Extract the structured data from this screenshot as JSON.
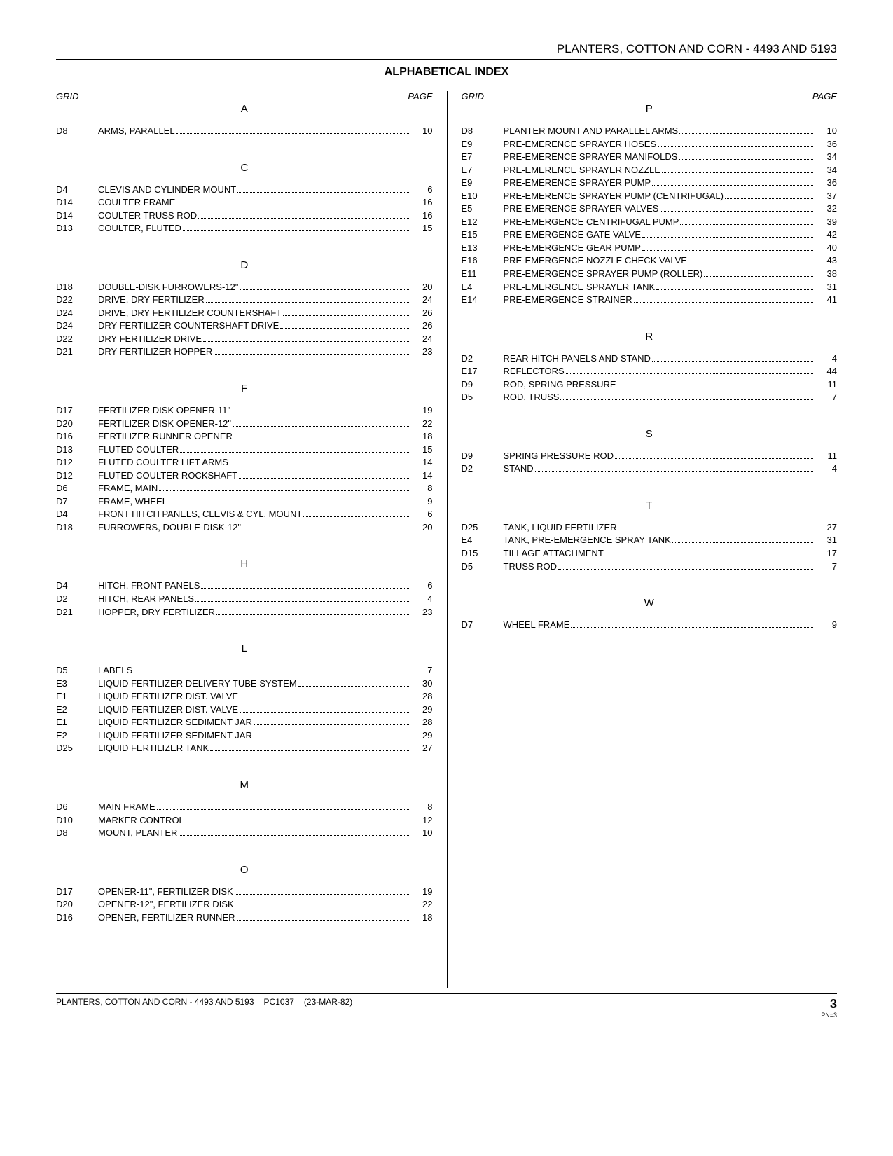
{
  "header": {
    "title": "PLANTERS, COTTON AND CORN - 4493 AND 5193",
    "index_title": "ALPHABETICAL INDEX"
  },
  "column_headers": {
    "grid": "GRID",
    "page": "PAGE"
  },
  "left_sections": [
    {
      "letter": "A",
      "entries": [
        {
          "grid": "D8",
          "desc": "ARMS, PARALLEL",
          "page": "10"
        }
      ]
    },
    {
      "letter": "C",
      "entries": [
        {
          "grid": "D4",
          "desc": "CLEVIS AND CYLINDER MOUNT",
          "page": "6"
        },
        {
          "grid": "D14",
          "desc": "COULTER FRAME",
          "page": "16"
        },
        {
          "grid": "D14",
          "desc": "COULTER TRUSS ROD",
          "page": "16"
        },
        {
          "grid": "D13",
          "desc": "COULTER, FLUTED",
          "page": "15"
        }
      ]
    },
    {
      "letter": "D",
      "entries": [
        {
          "grid": "D18",
          "desc": "DOUBLE-DISK FURROWERS-12\"",
          "page": "20"
        },
        {
          "grid": "D22",
          "desc": "DRIVE, DRY FERTILIZER",
          "page": "24"
        },
        {
          "grid": "D24",
          "desc": "DRIVE, DRY FERTILIZER COUNTERSHAFT",
          "page": "26"
        },
        {
          "grid": "D24",
          "desc": "DRY FERTILIZER COUNTERSHAFT DRIVE",
          "page": "26"
        },
        {
          "grid": "D22",
          "desc": "DRY FERTILIZER DRIVE",
          "page": "24"
        },
        {
          "grid": "D21",
          "desc": "DRY FERTILIZER HOPPER",
          "page": "23"
        }
      ]
    },
    {
      "letter": "F",
      "entries": [
        {
          "grid": "D17",
          "desc": "FERTILIZER DISK OPENER-11\"",
          "page": "19"
        },
        {
          "grid": "D20",
          "desc": "FERTILIZER DISK OPENER-12\"",
          "page": "22"
        },
        {
          "grid": "D16",
          "desc": "FERTILIZER RUNNER OPENER",
          "page": "18"
        },
        {
          "grid": "D13",
          "desc": "FLUTED COULTER",
          "page": "15"
        },
        {
          "grid": "D12",
          "desc": "FLUTED COULTER LIFT ARMS",
          "page": "14"
        },
        {
          "grid": "D12",
          "desc": "FLUTED COULTER ROCKSHAFT",
          "page": "14"
        },
        {
          "grid": "D6",
          "desc": "FRAME, MAIN",
          "page": "8"
        },
        {
          "grid": "D7",
          "desc": "FRAME, WHEEL",
          "page": "9"
        },
        {
          "grid": "D4",
          "desc": "FRONT HITCH PANELS, CLEVIS & CYL. MOUNT",
          "page": "6"
        },
        {
          "grid": "D18",
          "desc": "FURROWERS, DOUBLE-DISK-12\"",
          "page": "20"
        }
      ]
    },
    {
      "letter": "H",
      "entries": [
        {
          "grid": "D4",
          "desc": "HITCH, FRONT PANELS",
          "page": "6"
        },
        {
          "grid": "D2",
          "desc": "HITCH, REAR PANELS",
          "page": "4"
        },
        {
          "grid": "D21",
          "desc": "HOPPER, DRY FERTILIZER",
          "page": "23"
        }
      ]
    },
    {
      "letter": "L",
      "entries": [
        {
          "grid": "D5",
          "desc": "LABELS",
          "page": "7"
        },
        {
          "grid": "E3",
          "desc": "LIQUID FERTILIZER DELIVERY TUBE SYSTEM",
          "page": "30"
        },
        {
          "grid": "E1",
          "desc": "LIQUID FERTILIZER DIST. VALVE",
          "page": "28"
        },
        {
          "grid": "E2",
          "desc": "LIQUID FERTILIZER DIST. VALVE",
          "page": "29"
        },
        {
          "grid": "E1",
          "desc": "LIQUID FERTILIZER SEDIMENT JAR",
          "page": "28"
        },
        {
          "grid": "E2",
          "desc": "LIQUID FERTILIZER SEDIMENT JAR",
          "page": "29"
        },
        {
          "grid": "D25",
          "desc": "LIQUID FERTILIZER TANK",
          "page": "27"
        }
      ]
    },
    {
      "letter": "M",
      "entries": [
        {
          "grid": "D6",
          "desc": "MAIN FRAME",
          "page": "8"
        },
        {
          "grid": "D10",
          "desc": "MARKER CONTROL",
          "page": "12"
        },
        {
          "grid": "D8",
          "desc": "MOUNT, PLANTER",
          "page": "10"
        }
      ]
    },
    {
      "letter": "O",
      "entries": [
        {
          "grid": "D17",
          "desc": "OPENER-11\", FERTILIZER DISK",
          "page": "19"
        },
        {
          "grid": "D20",
          "desc": "OPENER-12\", FERTILIZER DISK",
          "page": "22"
        },
        {
          "grid": "D16",
          "desc": "OPENER, FERTILIZER RUNNER",
          "page": "18"
        }
      ]
    }
  ],
  "right_sections": [
    {
      "letter": "P",
      "entries": [
        {
          "grid": "D8",
          "desc": "PLANTER MOUNT AND PARALLEL ARMS",
          "page": "10"
        },
        {
          "grid": "E9",
          "desc": "PRE-EMERENCE SPRAYER HOSES",
          "page": "36"
        },
        {
          "grid": "E7",
          "desc": "PRE-EMERENCE SPRAYER MANIFOLDS",
          "page": "34"
        },
        {
          "grid": "E7",
          "desc": "PRE-EMERENCE SPRAYER NOZZLE",
          "page": "34"
        },
        {
          "grid": "E9",
          "desc": "PRE-EMERENCE SPRAYER PUMP",
          "page": "36"
        },
        {
          "grid": "E10",
          "desc": "PRE-EMERENCE SPRAYER PUMP (CENTRIFUGAL)",
          "page": "37"
        },
        {
          "grid": "E5",
          "desc": "PRE-EMERENCE SPRAYER VALVES",
          "page": "32"
        },
        {
          "grid": "E12",
          "desc": "PRE-EMERGENCE CENTRIFUGAL PUMP",
          "page": "39"
        },
        {
          "grid": "E15",
          "desc": "PRE-EMERGENCE GATE VALVE",
          "page": "42"
        },
        {
          "grid": "E13",
          "desc": "PRE-EMERGENCE GEAR PUMP",
          "page": "40"
        },
        {
          "grid": "E16",
          "desc": "PRE-EMERGENCE NOZZLE CHECK VALVE",
          "page": "43"
        },
        {
          "grid": "E11",
          "desc": "PRE-EMERGENCE SPRAYER PUMP (ROLLER)",
          "page": "38"
        },
        {
          "grid": "E4",
          "desc": "PRE-EMERGENCE SPRAYER TANK",
          "page": "31"
        },
        {
          "grid": "E14",
          "desc": "PRE-EMERGENCE STRAINER",
          "page": "41"
        }
      ]
    },
    {
      "letter": "R",
      "entries": [
        {
          "grid": "D2",
          "desc": "REAR HITCH PANELS AND STAND",
          "page": "4"
        },
        {
          "grid": "E17",
          "desc": "REFLECTORS",
          "page": "44"
        },
        {
          "grid": "D9",
          "desc": "ROD, SPRING PRESSURE",
          "page": "11"
        },
        {
          "grid": "D5",
          "desc": "ROD, TRUSS",
          "page": "7"
        }
      ]
    },
    {
      "letter": "S",
      "entries": [
        {
          "grid": "D9",
          "desc": "SPRING PRESSURE ROD",
          "page": "11"
        },
        {
          "grid": "D2",
          "desc": "STAND",
          "page": "4"
        }
      ]
    },
    {
      "letter": "T",
      "entries": [
        {
          "grid": "D25",
          "desc": "TANK, LIQUID FERTILIZER",
          "page": "27"
        },
        {
          "grid": "E4",
          "desc": "TANK, PRE-EMERGENCE SPRAY TANK",
          "page": "31"
        },
        {
          "grid": "D15",
          "desc": "TILLAGE ATTACHMENT",
          "page": "17"
        },
        {
          "grid": "D5",
          "desc": "TRUSS ROD",
          "page": "7"
        }
      ]
    },
    {
      "letter": "W",
      "entries": [
        {
          "grid": "D7",
          "desc": "WHEEL FRAME",
          "page": "9"
        }
      ]
    }
  ],
  "footer": {
    "left_title": "PLANTERS, COTTON AND CORN - 4493 AND 5193",
    "pc": "PC1037",
    "date": "(23-MAR-82)",
    "page_num": "3",
    "pn": "PN=3"
  }
}
